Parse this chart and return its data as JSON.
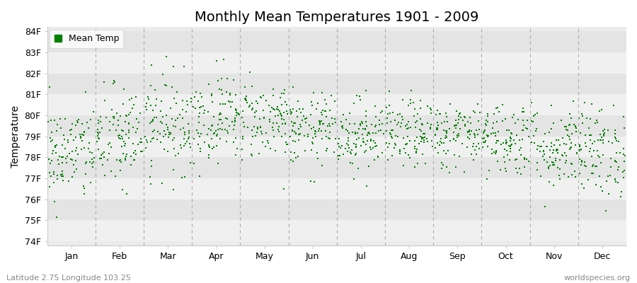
{
  "title": "Monthly Mean Temperatures 1901 - 2009",
  "ylabel": "Temperature",
  "ytick_labels": [
    "74F",
    "75F",
    "76F",
    "77F",
    "78F",
    "79F",
    "80F",
    "81F",
    "82F",
    "83F",
    "84F"
  ],
  "ytick_values": [
    74,
    75,
    76,
    77,
    78,
    79,
    80,
    81,
    82,
    83,
    84
  ],
  "ylim": [
    73.8,
    84.2
  ],
  "months": [
    "Jan",
    "Feb",
    "Mar",
    "Apr",
    "May",
    "Jun",
    "Jul",
    "Aug",
    "Sep",
    "Oct",
    "Nov",
    "Dec"
  ],
  "month_centers": [
    0.5,
    1.5,
    2.5,
    3.5,
    4.5,
    5.5,
    6.5,
    7.5,
    8.5,
    9.5,
    10.5,
    11.5
  ],
  "month_boundaries": [
    0,
    1,
    2,
    3,
    4,
    5,
    6,
    7,
    8,
    9,
    10,
    11,
    12
  ],
  "xlim": [
    0,
    12
  ],
  "dot_color": "#008000",
  "dot_size": 3,
  "background_color": "#ffffff",
  "plot_bg_light": "#ebebeb",
  "plot_bg_dark": "#e0e0e0",
  "band_light": "#f0f0f0",
  "band_dark": "#e4e4e4",
  "dashed_line_color": "#aaaaaa",
  "legend_label": "Mean Temp",
  "title_fontsize": 14,
  "axis_fontsize": 10,
  "tick_fontsize": 9,
  "subtitle_left": "Latitude 2.75 Longitude 103.25",
  "subtitle_right": "worldspecies.org",
  "subtitle_fontsize": 8,
  "n_years": 109,
  "seed": 42,
  "monthly_means": [
    78.2,
    78.9,
    79.6,
    79.9,
    79.8,
    79.3,
    79.1,
    79.1,
    79.1,
    78.9,
    78.5,
    78.3
  ],
  "monthly_stds": [
    1.15,
    1.25,
    1.15,
    1.05,
    0.95,
    0.85,
    0.85,
    0.8,
    0.8,
    0.9,
    1.0,
    1.1
  ]
}
